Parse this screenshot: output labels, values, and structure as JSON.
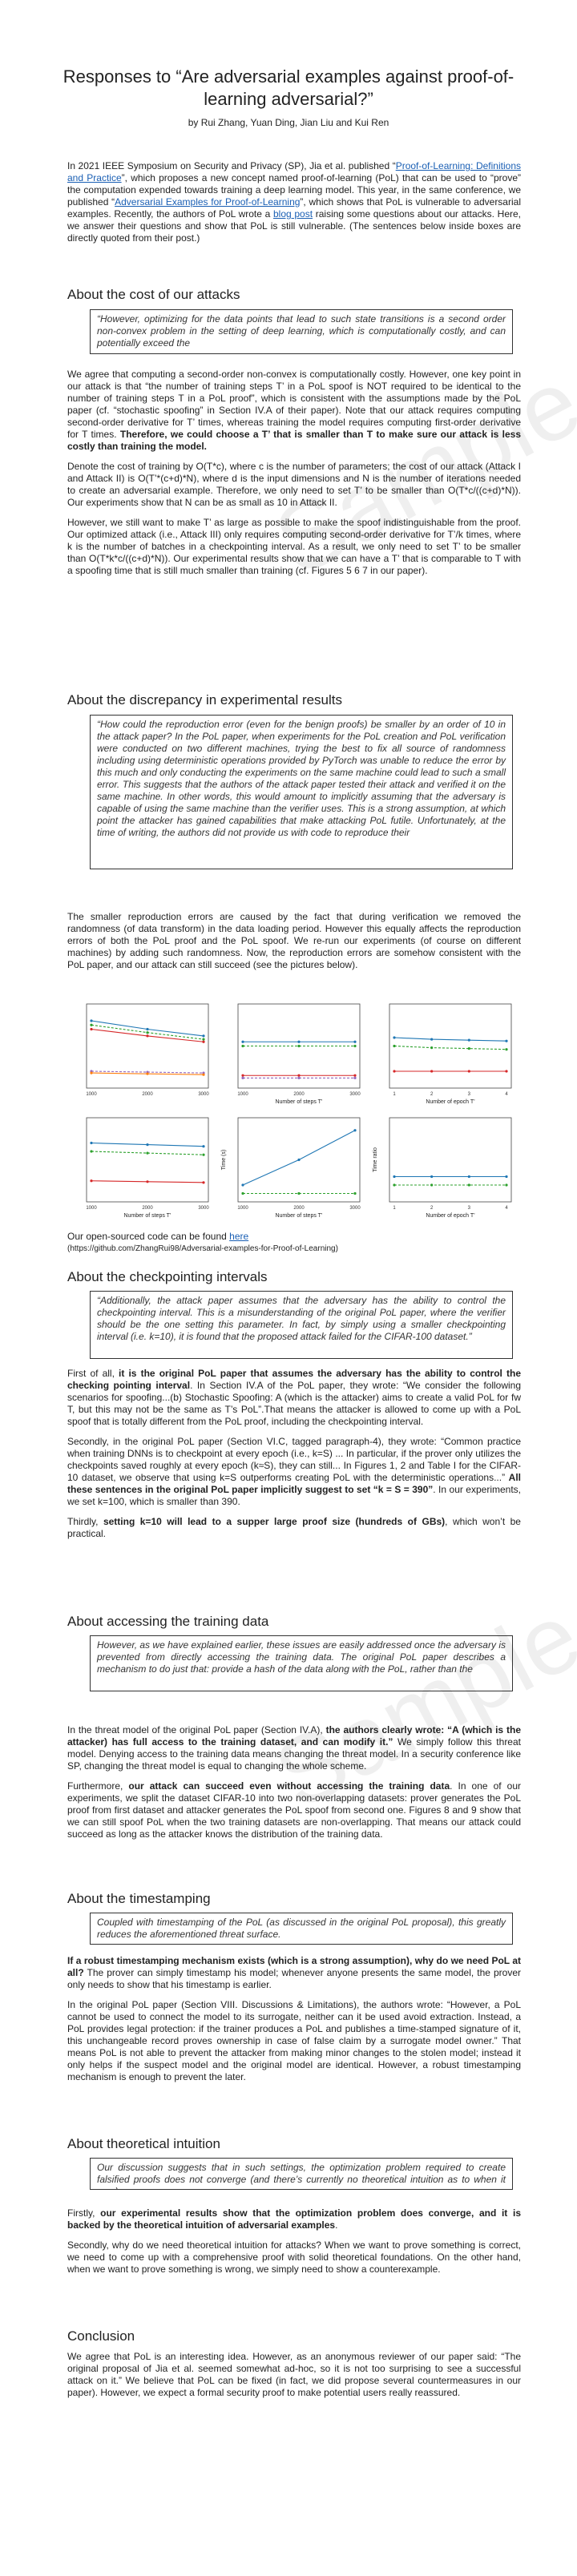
{
  "title": "Responses to “Are adversarial examples against proof-of-learning adversarial?”",
  "authors": "by Rui Zhang, Yuan Ding, Jian Liu and Kui Ren",
  "intro": {
    "p1_a": "In 2021 IEEE Symposium on Security and Privacy (SP), Jia et al. published “",
    "p1_link1": "Proof-of-Learning: Definitions and Practice",
    "p1_b": "”, which proposes a new concept named proof-of-learning (PoL) that can be used to “prove” the computation expended towards training a deep learning model. This year, in the same conference, we published “",
    "p1_link2": "Adversarial Examples for Proof-of-Learning",
    "p1_c": "”, which shows that PoL is vulnerable to adversarial examples. Recently, the authors of PoL wrote a ",
    "p1_link3": "blog post",
    "p1_d": " raising some questions about our attacks. Here, we answer their questions and show that PoL is still vulnerable. (The sentences below inside boxes are directly quoted from their post.)"
  },
  "s1": {
    "heading": "About the cost of our attacks",
    "quote": "“However, optimizing for the data points that lead to such state transitions is a second order non-convex problem in the setting of deep learning, which is computationally costly, and can potentially exceed the",
    "p1_a": "We agree that computing a second-order non-convex is computationally costly. However, one key point in our attack is that “the number of training steps T’ in a PoL spoof is NOT required to be identical to the number of training steps T in a PoL proof”, which is consistent with the assumptions made by the PoL paper (cf. “stochastic spoofing” in Section IV.A of their paper). Note that our attack requires computing second-order derivative for T’ times, whereas training the model requires computing first-order derivative for T times. ",
    "p1_b": "Therefore, we could choose a T’ that is smaller than T to make sure our attack is less costly than training the model.",
    "p2": "Denote the cost of training by O(T*c), where c is the number of parameters; the cost of our attack (Attack I and Attack II) is O(T’*(c+d)*N), where d is the input dimensions and N is the number of iterations needed to create an adversarial example. Therefore, we only need to set T’ to be smaller than O(T*c/((c+d)*N)). Our experiments show that N can be as small as 10 in Attack II.",
    "p3": "However, we still want to make T’ as large as possible to make the spoof indistinguishable from the proof. Our optimized attack (i.e., Attack III) only requires computing second-order derivative for T’/k times, where k is the number of batches in a checkpointing interval. As a result, we only need to set T’ to be smaller than O(T*k*c/((c+d)*N)). Our experimental results show that we can have a T’ that is comparable to T with a spoofing time that is still much smaller than training (cf. Figures 5 6 7 in our paper)."
  },
  "s2": {
    "heading": "About the discrepancy in experimental results",
    "quote": "“How could the reproduction error (even for the benign proofs) be smaller by an order of 10 in the attack paper? In the PoL paper, when experiments for the PoL creation and PoL verification were conducted on two different machines, trying the best to fix all source of randomness including using deterministic operations provided by PyTorch was unable to reduce the error by this much and only conducting the experiments on the same machine could lead to such a small error. This suggests that the authors of the attack paper tested their attack and verified it on the same machine. In other words, this would amount to implicitly assuming that the adversary is capable of using the same machine than the verifier uses. This is a strong assumption, at which point the attacker has gained capabilities that make attacking PoL futile. Unfortunately, at the time of writing, the authors did not provide us with code to reproduce their",
    "p1": "The smaller reproduction errors are caused by the fact that during verification we removed the randomness (of data transform) in the data loading period. However this equally affects the reproduction errors of both the PoL proof and the PoL spoof. We re-run our experiments (of course on different machines) by adding such randomness. Now, the reproduction errors are somehow consistent with the PoL paper, and our attack can still succeed (see the pictures below).",
    "code_text": "Our open-sourced code can be found ",
    "code_link": "here",
    "code_url": "(https://github.com/ZhangRui98/Adversarial-examples-for-Proof-of-Learning)"
  },
  "chart_data": [
    {
      "type": "line",
      "xlabel": "",
      "ylabel": "",
      "categories": [
        "1000",
        "2000",
        "3000"
      ],
      "series": [
        {
          "name": "",
          "values": [
            0.8,
            0.7,
            0.62
          ]
        },
        {
          "name": "",
          "values": [
            0.75,
            0.66,
            0.58
          ]
        },
        {
          "name": "",
          "values": [
            0.7,
            0.62,
            0.55
          ]
        },
        {
          "name": "",
          "values": [
            0.2,
            0.19,
            0.18
          ]
        },
        {
          "name": "",
          "values": [
            0.18,
            0.17,
            0.16
          ]
        }
      ]
    },
    {
      "type": "line",
      "xlabel": "Number of steps T’",
      "ylabel": "",
      "categories": [
        "1000",
        "2000",
        "3000"
      ],
      "series": [
        {
          "name": "",
          "values": [
            0.55,
            0.55,
            0.55
          ]
        },
        {
          "name": "",
          "values": [
            0.5,
            0.5,
            0.5
          ]
        },
        {
          "name": "",
          "values": [
            0.15,
            0.15,
            0.15
          ]
        },
        {
          "name": "",
          "values": [
            0.12,
            0.12,
            0.12
          ]
        }
      ]
    },
    {
      "type": "line",
      "xlabel": "Number of epoch T’",
      "ylabel": "",
      "categories": [
        "1",
        "2",
        "3",
        "4"
      ],
      "series": [
        {
          "name": "",
          "values": [
            0.6,
            0.58,
            0.57,
            0.56
          ]
        },
        {
          "name": "",
          "values": [
            0.5,
            0.48,
            0.47,
            0.46
          ]
        },
        {
          "name": "",
          "values": [
            0.2,
            0.2,
            0.2,
            0.2
          ]
        }
      ]
    },
    {
      "type": "line",
      "xlabel": "Number of steps T’",
      "ylabel": "",
      "categories": [
        "1000",
        "2000",
        "3000"
      ],
      "series": [
        {
          "name": "",
          "values": [
            0.7,
            0.68,
            0.66
          ]
        },
        {
          "name": "",
          "values": [
            0.6,
            0.58,
            0.56
          ]
        },
        {
          "name": "",
          "values": [
            0.25,
            0.24,
            0.23
          ]
        }
      ]
    },
    {
      "type": "line",
      "xlabel": "Number of steps T’",
      "ylabel": "Time (s)",
      "categories": [
        "1000",
        "2000",
        "3000"
      ],
      "series": [
        {
          "name": "",
          "values": [
            0.2,
            0.5,
            0.85
          ]
        },
        {
          "name": "",
          "values": [
            0.1,
            0.1,
            0.1
          ]
        }
      ]
    },
    {
      "type": "line",
      "xlabel": "Number of epoch T’",
      "ylabel": "Time ratio",
      "categories": [
        "1",
        "2",
        "3",
        "4"
      ],
      "series": [
        {
          "name": "",
          "values": [
            0.3,
            0.3,
            0.3,
            0.3
          ]
        },
        {
          "name": "",
          "values": [
            0.2,
            0.2,
            0.2,
            0.2
          ]
        }
      ]
    }
  ],
  "s3": {
    "heading": "About the checkpointing intervals",
    "quote": "“Additionally, the attack paper assumes that the adversary has the ability to control the checkpointing interval. This is a misunderstanding of the original PoL paper, where the verifier should be the one setting this parameter. In fact, by simply using a smaller checkpointing interval (i.e. k=10), it is found that the proposed attack failed for the CIFAR-100 dataset.”",
    "p1_a": "First of all, ",
    "p1_b": "it is the original PoL paper that assumes the adversary has the ability to control the checking pointing interval",
    "p1_c": ". In Section IV.A of the PoL paper, they wrote: “We consider the following scenarios for spoofing...(b) Stochastic Spoofing: A (which is the attacker) aims to create a valid PoL for fw T, but this may not be the same as T’s PoL”.That means the attacker is allowed to come up with a PoL spoof that is totally different from the PoL proof, including the checkpointing interval.",
    "p2_a": "Secondly, in the original PoL paper (Section VI.C, tagged paragraph-4), they wrote: “Common practice when training DNNs is to checkpoint at every epoch (i.e., k=S) ... In particular, if the prover only utilizes the checkpoints saved roughly at every epoch (k≈S), they can still... In Figures 1, 2 and Table I for the CIFAR-10 dataset, we observe that using k=S outperforms creating PoL with the deterministic operations...” ",
    "p2_b": "All these sentences in the original PoL paper implicitly suggest to set “k = S = 390”",
    "p2_c": ". In our experiments, we set k=100, which is smaller than 390.",
    "p3_a": "Thirdly, ",
    "p3_b": "setting k=10 will lead to a supper large proof size (hundreds of GBs)",
    "p3_c": ", which won’t be practical."
  },
  "s4": {
    "heading": "About accessing the training data",
    "quote": "However, as we have explained earlier, these issues are easily addressed once the adversary is prevented from directly accessing the training data. The original PoL paper describes a mechanism to do just that: provide a hash of the data along with the PoL, rather than the",
    "p1_a": "In the threat model of the original PoL paper (Section IV.A), ",
    "p1_b": "the authors clearly wrote: “A (which is the attacker) has full access to the training dataset, and can modify it.”",
    "p1_c": " We simply follow this threat model. Denying access to the training data means changing the threat model. In a security conference like SP, changing the threat model is equal to changing the whole scheme.",
    "p2_a": "Furthermore, ",
    "p2_b": "our attack can succeed even without accessing the training data",
    "p2_c": ". In one of our experiments, we split the dataset CIFAR-10 into two non-overlapping datasets: prover generates the PoL proof from first dataset and attacker generates the PoL spoof from second one. Figures 8 and 9 show that we can still spoof PoL when the two training datasets are non-overlapping. That means our attack could succeed as long as the attacker knows the distribution of the training data."
  },
  "s5": {
    "heading": "About the timestamping",
    "quote": "Coupled with timestamping of the PoL (as discussed in the original PoL proposal), this greatly reduces the aforementioned threat surface.",
    "p1_a": "If a robust timestamping mechanism exists (which is a strong assumption), why do we need PoL at all?",
    "p1_b": " The prover can simply timestamp his model; whenever anyone presents the same model, the prover only needs to show that his timestamp is earlier.",
    "p2": "In the original PoL paper (Section VIII. Discussions & Limitations), the authors wrote: “However, a PoL cannot be used to connect the model to its surrogate, neither can it be used avoid extraction. Instead, a PoL provides legal protection: if the trainer produces a PoL and publishes a time-stamped signature of it, this unchangeable record proves ownership in case of false claim by a surrogate model owner.” That means PoL is not able to prevent the attacker from making minor changes to the stolen model; instead it only helps if the suspect model and the original model are identical. However, a robust timestamping mechanism is enough to prevent the later."
  },
  "s6": {
    "heading": "About theoretical intuition",
    "quote": "Our discussion suggests that in such settings, the optimization problem required to create falsified proofs does not converge (and there’s currently no theoretical intuition as to when it may).",
    "p1_a": "Firstly, ",
    "p1_b": "our experimental results show that the optimization problem does converge, and it is backed by the theoretical intuition of adversarial examples",
    "p1_c": ".",
    "p2": "Secondly, why do we need theoretical intuition for attacks? When we want to prove something is correct, we need to come up with a comprehensive proof with solid theoretical foundations. On the other hand, when we want to prove something is wrong, we simply need to show a counterexample."
  },
  "s7": {
    "heading": "Conclusion",
    "p1": "We agree that PoL is an interesting idea. However, as an anonymous reviewer of our paper said: “The original proposal of Jia et al. seemed somewhat ad-hoc, so it is not too surprising to see a successful attack on it.” We believe that PoL can be fixed (in fact, we did propose several countermeasures in our paper). However, we expect a formal security proof to make potential users really reassured."
  },
  "watermark": "Sample"
}
